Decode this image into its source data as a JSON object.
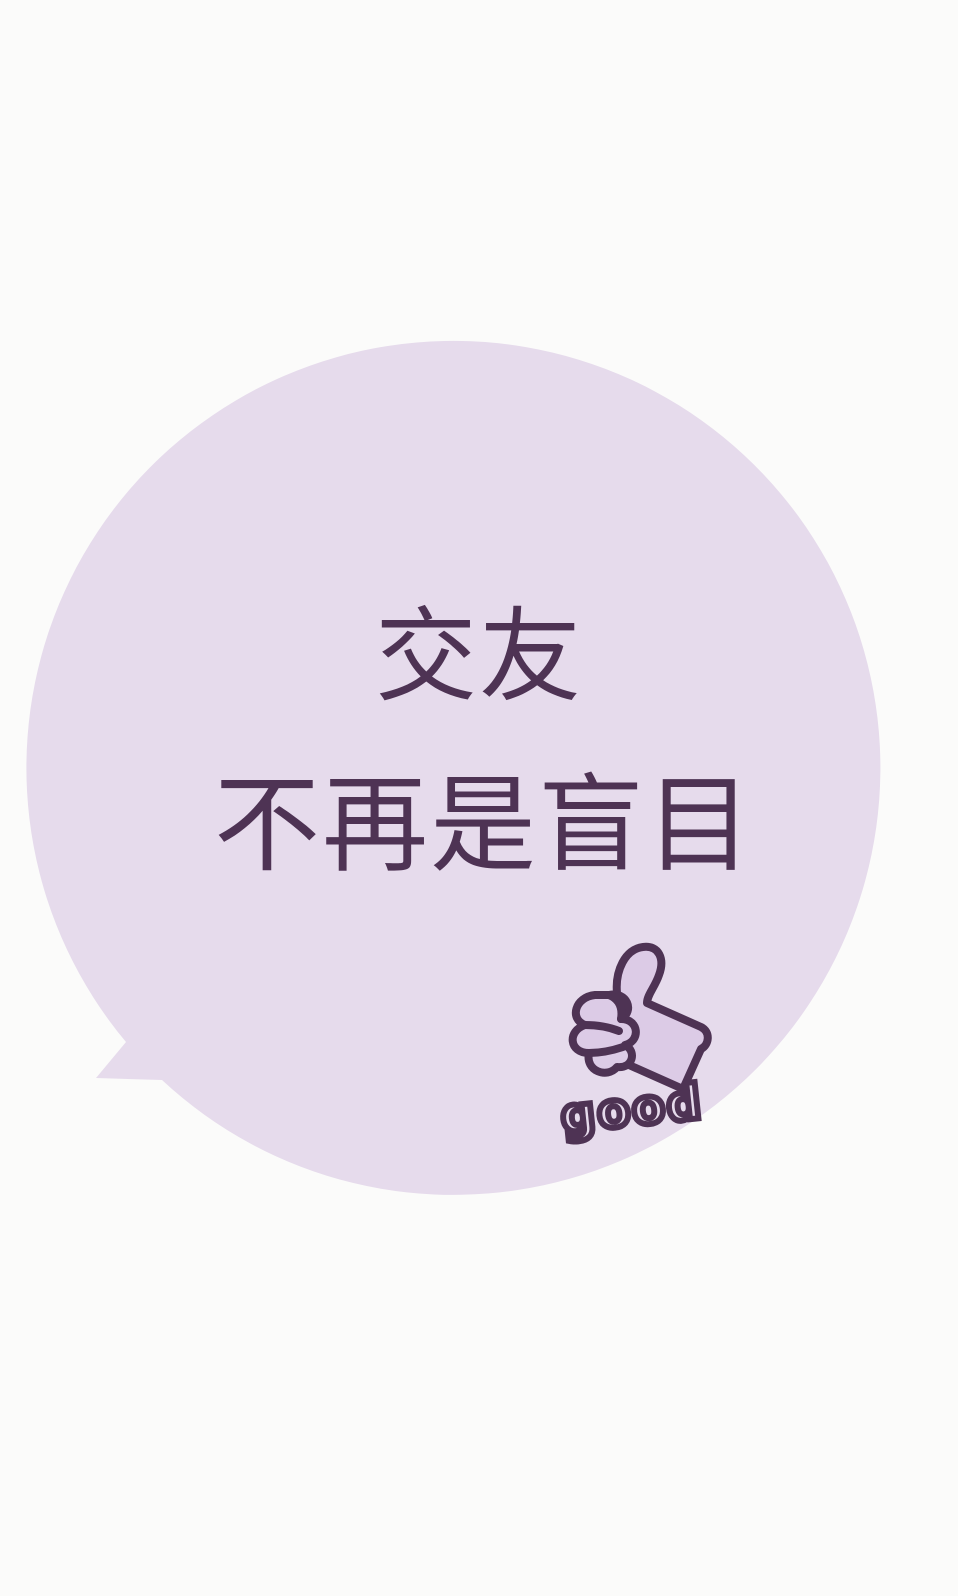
{
  "bubble": {
    "fill_color": "#e6dbec",
    "text_color": "#4e3354",
    "lines": [
      "交友",
      "不再是盲目"
    ]
  },
  "sticker": {
    "icon": "thumbs-up-icon",
    "label": "good",
    "fill_color": "#dccbe6",
    "outline_color": "#4e3354"
  }
}
